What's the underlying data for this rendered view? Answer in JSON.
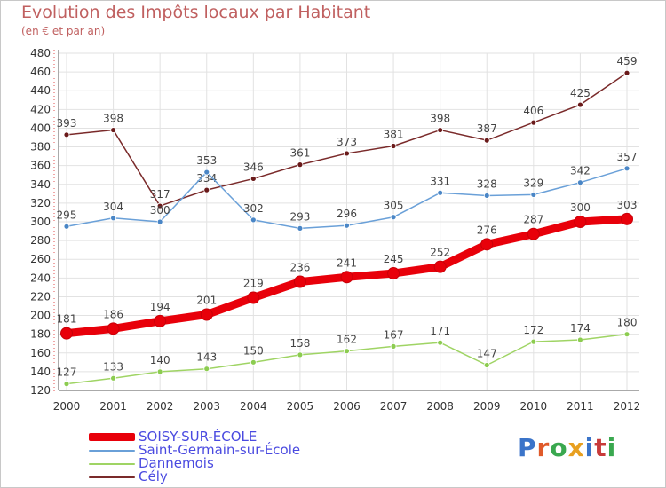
{
  "header": {
    "title": "Evolution des Impôts locaux par Habitant",
    "subtitle": "(en € et par an)"
  },
  "colors": {
    "title": "#c06060",
    "legend_text": "#4a4ae0",
    "grid": "#dddddd"
  },
  "logo": {
    "text": "Proxiti",
    "letter_colors": [
      "#3b74c9",
      "#e05a2a",
      "#3aa84f",
      "#e8a020",
      "#3b74c9",
      "#c83a3a",
      "#3aa84f"
    ]
  },
  "chart_data": {
    "type": "line",
    "title": "Evolution des Impôts locaux par Habitant",
    "subtitle": "(en € et par an)",
    "xlabel": "",
    "ylabel": "",
    "x": [
      "2000",
      "2001",
      "2002",
      "2003",
      "2004",
      "2005",
      "2006",
      "2007",
      "2008",
      "2009",
      "2010",
      "2011",
      "2012"
    ],
    "ylim": [
      120,
      480
    ],
    "yticks": [
      120,
      140,
      160,
      180,
      200,
      220,
      240,
      260,
      280,
      300,
      320,
      340,
      360,
      380,
      400,
      420,
      440,
      460,
      480
    ],
    "grid": true,
    "legend_position": "bottom-left",
    "series": [
      {
        "name": "SOISY-SUR-ÉCOLE",
        "color": "#e8000a",
        "marker": "#e8000a",
        "label_color": "#444444",
        "emphasis": true,
        "values": [
          181,
          186,
          194,
          201,
          219,
          236,
          241,
          245,
          252,
          276,
          287,
          300,
          303
        ]
      },
      {
        "name": "Saint-Germain-sur-École",
        "color": "#6aa0d8",
        "marker": "#4a86c6",
        "label_color": "#444444",
        "emphasis": false,
        "values": [
          295,
          304,
          300,
          353,
          302,
          293,
          296,
          305,
          331,
          328,
          329,
          342,
          357
        ]
      },
      {
        "name": "Dannemois",
        "color": "#9fd464",
        "marker": "#8ccc50",
        "label_color": "#444444",
        "emphasis": false,
        "values": [
          127,
          133,
          140,
          143,
          150,
          158,
          162,
          167,
          171,
          147,
          172,
          174,
          180
        ]
      },
      {
        "name": "Cély",
        "color": "#7a2a2a",
        "marker": "#6a1a1a",
        "label_color": "#444444",
        "emphasis": false,
        "values": [
          393,
          398,
          317,
          334,
          346,
          361,
          373,
          381,
          398,
          387,
          406,
          425,
          459
        ]
      }
    ]
  }
}
